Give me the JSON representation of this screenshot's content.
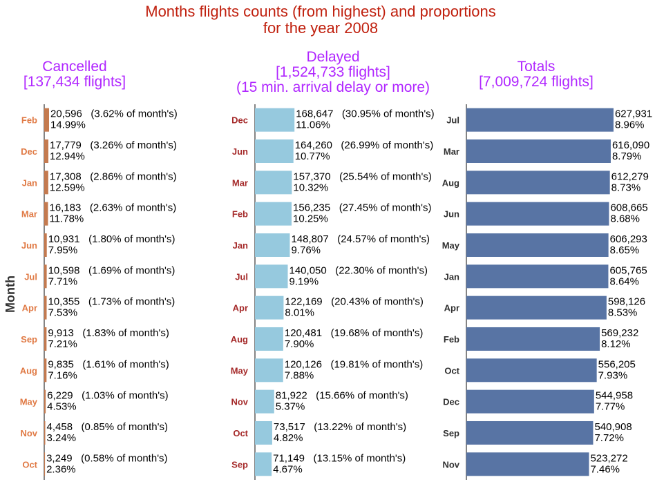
{
  "colors": {
    "title": "#c0200e",
    "panel_title": "#b026ff",
    "cancelled_bar": "#c47a4f",
    "cancelled_tick": "#e07a45",
    "delayed_bar": "#96c9de",
    "delayed_tick": "#a52a2a",
    "totals_bar": "#5874a4",
    "totals_tick": "#2f2f2f",
    "axis": "#333333",
    "ylabel": "#333333",
    "label_text": "#000000"
  },
  "title_lines": [
    "Months flights counts (from highest) and proportions",
    "for the year 2008"
  ],
  "ylabel": "Month",
  "chart_data": [
    {
      "type": "bar",
      "orientation": "horizontal",
      "title_lines": [
        "Cancelled",
        "[137,434 flights]"
      ],
      "categories": [
        "Feb",
        "Dec",
        "Jan",
        "Mar",
        "Jun",
        "Jul",
        "Apr",
        "Sep",
        "Aug",
        "May",
        "Nov",
        "Oct"
      ],
      "values": [
        20596,
        17779,
        17308,
        16183,
        10931,
        10598,
        10355,
        9913,
        9835,
        6229,
        4458,
        3249
      ],
      "month_pct": [
        "3.62",
        "3.26",
        "2.86",
        "2.63",
        "1.80",
        "1.69",
        "1.73",
        "1.83",
        "1.61",
        "1.03",
        "0.85",
        "0.58"
      ],
      "share_pct": [
        "14.99",
        "12.94",
        "12.59",
        "11.78",
        "7.95",
        "7.71",
        "7.53",
        "7.21",
        "7.16",
        "4.53",
        "3.24",
        "2.36"
      ],
      "xlim": [
        0,
        628000
      ]
    },
    {
      "type": "bar",
      "orientation": "horizontal",
      "title_lines": [
        "Delayed",
        "[1,524,733 flights]",
        "(15 min. arrival delay or more)"
      ],
      "categories": [
        "Dec",
        "Jun",
        "Mar",
        "Feb",
        "Jan",
        "Jul",
        "Apr",
        "Aug",
        "May",
        "Nov",
        "Oct",
        "Sep"
      ],
      "values": [
        168647,
        164260,
        157370,
        156235,
        148807,
        140050,
        122169,
        120481,
        120126,
        81922,
        73517,
        71149
      ],
      "month_pct": [
        "30.95",
        "26.99",
        "25.54",
        "27.45",
        "24.57",
        "22.30",
        "20.43",
        "19.68",
        "19.81",
        "15.66",
        "13.22",
        "13.15"
      ],
      "share_pct": [
        "11.06",
        "10.77",
        "10.32",
        "10.25",
        "9.76",
        "9.19",
        "8.01",
        "7.90",
        "7.88",
        "5.37",
        "4.82",
        "4.67"
      ],
      "xlim": [
        0,
        628000
      ]
    },
    {
      "type": "bar",
      "orientation": "horizontal",
      "title_lines": [
        "Totals",
        "[7,009,724 flights]"
      ],
      "categories": [
        "Jul",
        "Mar",
        "Aug",
        "Jun",
        "May",
        "Jan",
        "Apr",
        "Feb",
        "Oct",
        "Dec",
        "Sep",
        "Nov"
      ],
      "values": [
        627931,
        616090,
        612279,
        608665,
        606293,
        605765,
        598126,
        569232,
        556205,
        544958,
        540908,
        523272
      ],
      "share_pct": [
        "8.96",
        "8.79",
        "8.73",
        "8.68",
        "8.65",
        "8.64",
        "8.53",
        "8.12",
        "7.93",
        "7.77",
        "7.72",
        "7.46"
      ],
      "xlim": [
        0,
        628000
      ]
    }
  ]
}
